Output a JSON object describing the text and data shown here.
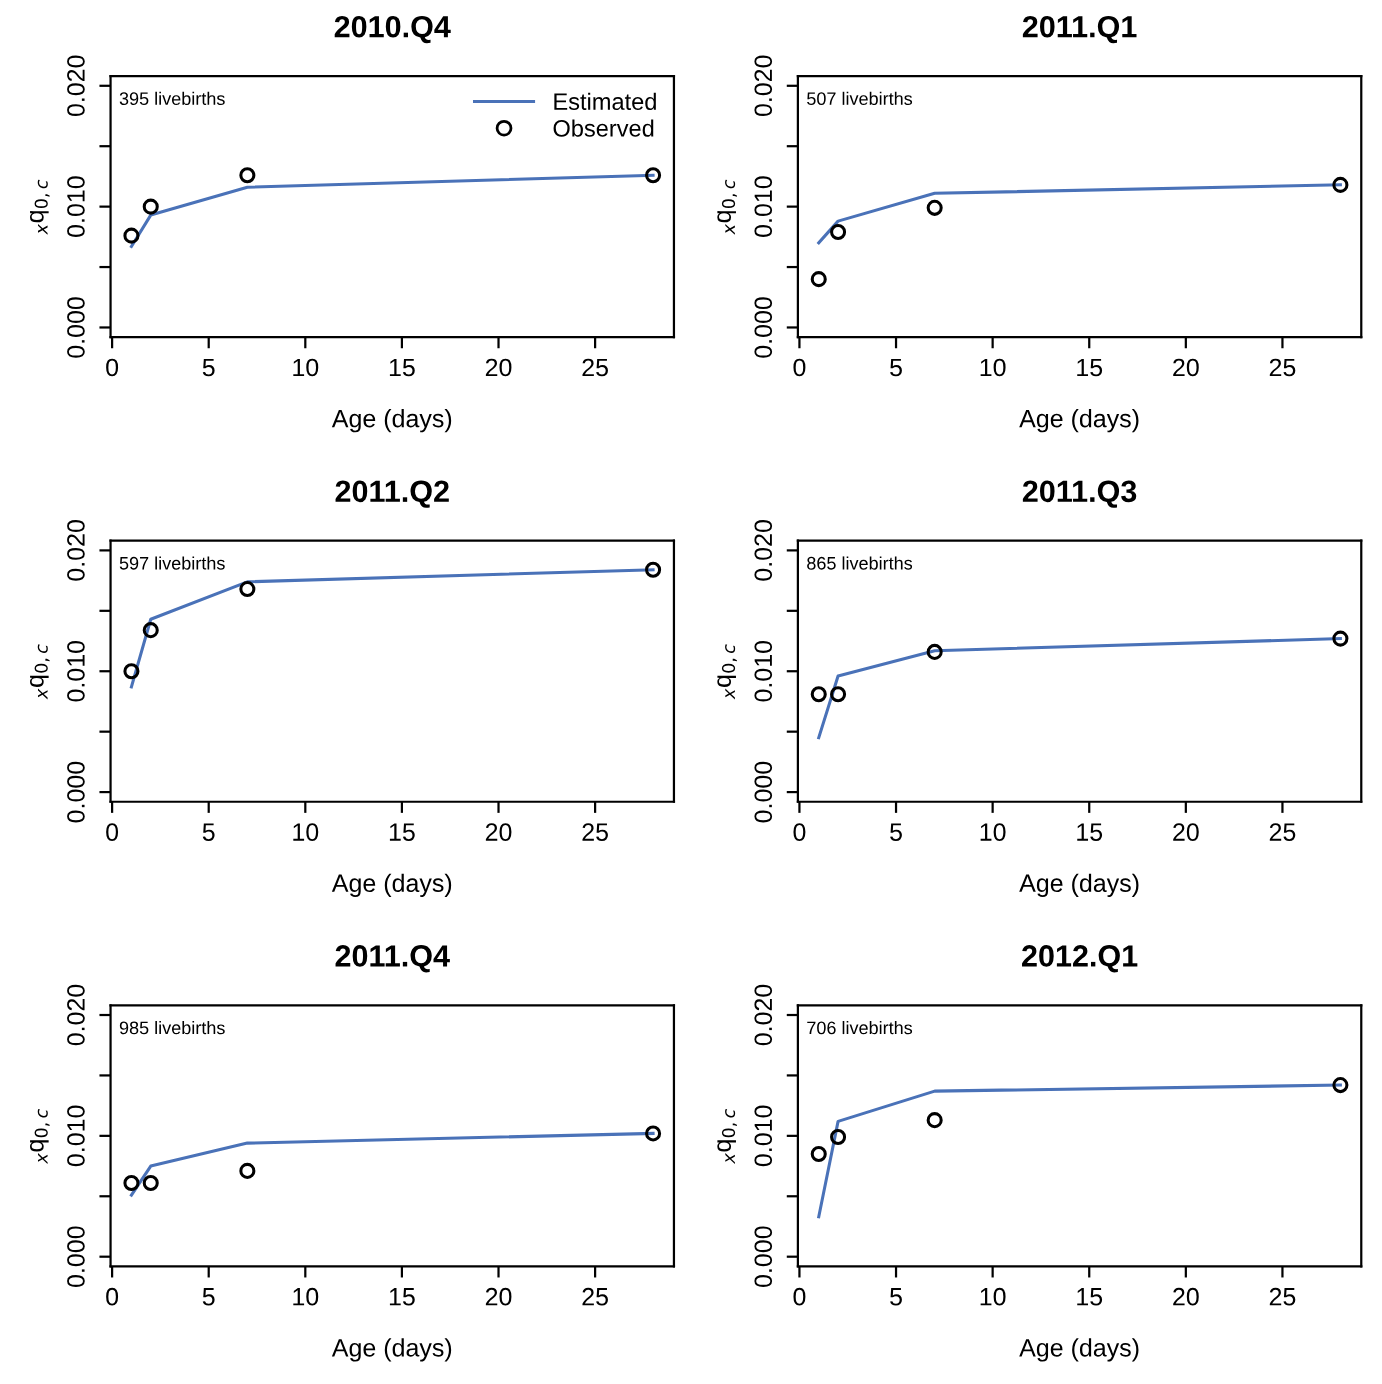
{
  "chart_data": [
    {
      "type": "line",
      "title": "2010.Q4",
      "xlabel": "Age (days)",
      "ylabel": "$_{x}$q$_{0,c}$",
      "annotations": [
        "395 livebirths"
      ],
      "legend": "top right",
      "grid": false,
      "x": [
        1,
        2,
        7,
        28
      ],
      "xlim": [
        -0.08,
        29.08
      ],
      "xticks": [
        0,
        5,
        10,
        15,
        20,
        25
      ],
      "ylim": [
        -0.0008,
        0.0208
      ],
      "yticks": [
        {
          "value": 0,
          "label": "0.000"
        },
        {
          "value": 0.005,
          "label": null
        },
        {
          "value": 0.01,
          "label": "0.010"
        },
        {
          "value": 0.015,
          "label": null
        },
        {
          "value": 0.02,
          "label": "0.020"
        }
      ],
      "series": [
        {
          "name": "Estimated",
          "color": "#4a72b8",
          "values": [
            0.0067,
            0.0093,
            0.0116,
            0.0126
          ]
        },
        {
          "name": "Observed",
          "type": "scatter",
          "marker": "circle",
          "color": "#000000",
          "values": [
            0.0076,
            0.01,
            0.0126,
            0.0126
          ]
        }
      ]
    },
    {
      "type": "line",
      "title": "2011.Q1",
      "xlabel": "Age (days)",
      "ylabel": "$_{x}$q$_{0,c}$",
      "annotations": [
        "507 livebirths"
      ],
      "grid": false,
      "x": [
        1,
        2,
        7,
        28
      ],
      "xlim": [
        -0.08,
        29.08
      ],
      "xticks": [
        0,
        5,
        10,
        15,
        20,
        25
      ],
      "ylim": [
        -0.0008,
        0.0208
      ],
      "yticks": [
        {
          "value": 0,
          "label": "0.000"
        },
        {
          "value": 0.005,
          "label": null
        },
        {
          "value": 0.01,
          "label": "0.010"
        },
        {
          "value": 0.015,
          "label": null
        },
        {
          "value": 0.02,
          "label": "0.020"
        }
      ],
      "series": [
        {
          "color": "#4a72b8",
          "values": [
            0.007,
            0.0088,
            0.0111,
            0.0118
          ]
        },
        {
          "type": "scatter",
          "marker": "circle",
          "color": "#000000",
          "values": [
            0.004,
            0.0079,
            0.0099,
            0.0118
          ]
        }
      ]
    },
    {
      "type": "line",
      "title": "2011.Q2",
      "xlabel": "Age (days)",
      "ylabel": "$_{x}$q$_{0,c}$",
      "annotations": [
        "597 livebirths"
      ],
      "grid": false,
      "x": [
        1,
        2,
        7,
        28
      ],
      "xlim": [
        -0.08,
        29.08
      ],
      "xticks": [
        0,
        5,
        10,
        15,
        20,
        25
      ],
      "ylim": [
        -0.0008,
        0.0208
      ],
      "yticks": [
        {
          "value": 0,
          "label": "0.000"
        },
        {
          "value": 0.005,
          "label": null
        },
        {
          "value": 0.01,
          "label": "0.010"
        },
        {
          "value": 0.015,
          "label": null
        },
        {
          "value": 0.02,
          "label": "0.020"
        }
      ],
      "series": [
        {
          "color": "#4a72b8",
          "values": [
            0.0087,
            0.0143,
            0.0174,
            0.0184
          ]
        },
        {
          "type": "scatter",
          "marker": "circle",
          "color": "#000000",
          "values": [
            0.01,
            0.0134,
            0.0168,
            0.0184
          ]
        }
      ]
    },
    {
      "type": "line",
      "title": "2011.Q3",
      "xlabel": "Age (days)",
      "ylabel": "$_{x}$q$_{0,c}$",
      "annotations": [
        "865 livebirths"
      ],
      "grid": false,
      "x": [
        1,
        2,
        7,
        28
      ],
      "xlim": [
        -0.08,
        29.08
      ],
      "xticks": [
        0,
        5,
        10,
        15,
        20,
        25
      ],
      "ylim": [
        -0.0008,
        0.0208
      ],
      "yticks": [
        {
          "value": 0,
          "label": "0.000"
        },
        {
          "value": 0.005,
          "label": null
        },
        {
          "value": 0.01,
          "label": "0.010"
        },
        {
          "value": 0.015,
          "label": null
        },
        {
          "value": 0.02,
          "label": "0.020"
        }
      ],
      "series": [
        {
          "color": "#4a72b8",
          "values": [
            0.0045,
            0.0096,
            0.0117,
            0.0127
          ]
        },
        {
          "type": "scatter",
          "marker": "circle",
          "color": "#000000",
          "values": [
            0.0081,
            0.0081,
            0.0116,
            0.0127
          ]
        }
      ]
    },
    {
      "type": "line",
      "title": "2011.Q4",
      "xlabel": "Age (days)",
      "ylabel": "$_{x}$q$_{0,c}$",
      "annotations": [
        "985 livebirths"
      ],
      "grid": false,
      "x": [
        1,
        2,
        7,
        28
      ],
      "xlim": [
        -0.08,
        29.08
      ],
      "xticks": [
        0,
        5,
        10,
        15,
        20,
        25
      ],
      "ylim": [
        -0.0008,
        0.0208
      ],
      "yticks": [
        {
          "value": 0,
          "label": "0.000"
        },
        {
          "value": 0.005,
          "label": null
        },
        {
          "value": 0.01,
          "label": "0.010"
        },
        {
          "value": 0.015,
          "label": null
        },
        {
          "value": 0.02,
          "label": "0.020"
        }
      ],
      "series": [
        {
          "color": "#4a72b8",
          "values": [
            0.0051,
            0.0075,
            0.0094,
            0.0102
          ]
        },
        {
          "type": "scatter",
          "marker": "circle",
          "color": "#000000",
          "values": [
            0.0061,
            0.0061,
            0.0071,
            0.0102
          ]
        }
      ]
    },
    {
      "type": "line",
      "title": "2012.Q1",
      "xlabel": "Age (days)",
      "ylabel": "$_{x}$q$_{0,c}$",
      "annotations": [
        "706 livebirths"
      ],
      "grid": false,
      "x": [
        1,
        2,
        7,
        28
      ],
      "xlim": [
        -0.08,
        29.08
      ],
      "xticks": [
        0,
        5,
        10,
        15,
        20,
        25
      ],
      "ylim": [
        -0.0008,
        0.0208
      ],
      "yticks": [
        {
          "value": 0,
          "label": "0.000"
        },
        {
          "value": 0.005,
          "label": null
        },
        {
          "value": 0.01,
          "label": "0.010"
        },
        {
          "value": 0.015,
          "label": null
        },
        {
          "value": 0.02,
          "label": "0.020"
        }
      ],
      "series": [
        {
          "color": "#4a72b8",
          "values": [
            0.0033,
            0.0112,
            0.0137,
            0.0142
          ]
        },
        {
          "type": "scatter",
          "marker": "circle",
          "color": "#000000",
          "values": [
            0.0085,
            0.0099,
            0.0113,
            0.0142
          ]
        }
      ]
    }
  ]
}
